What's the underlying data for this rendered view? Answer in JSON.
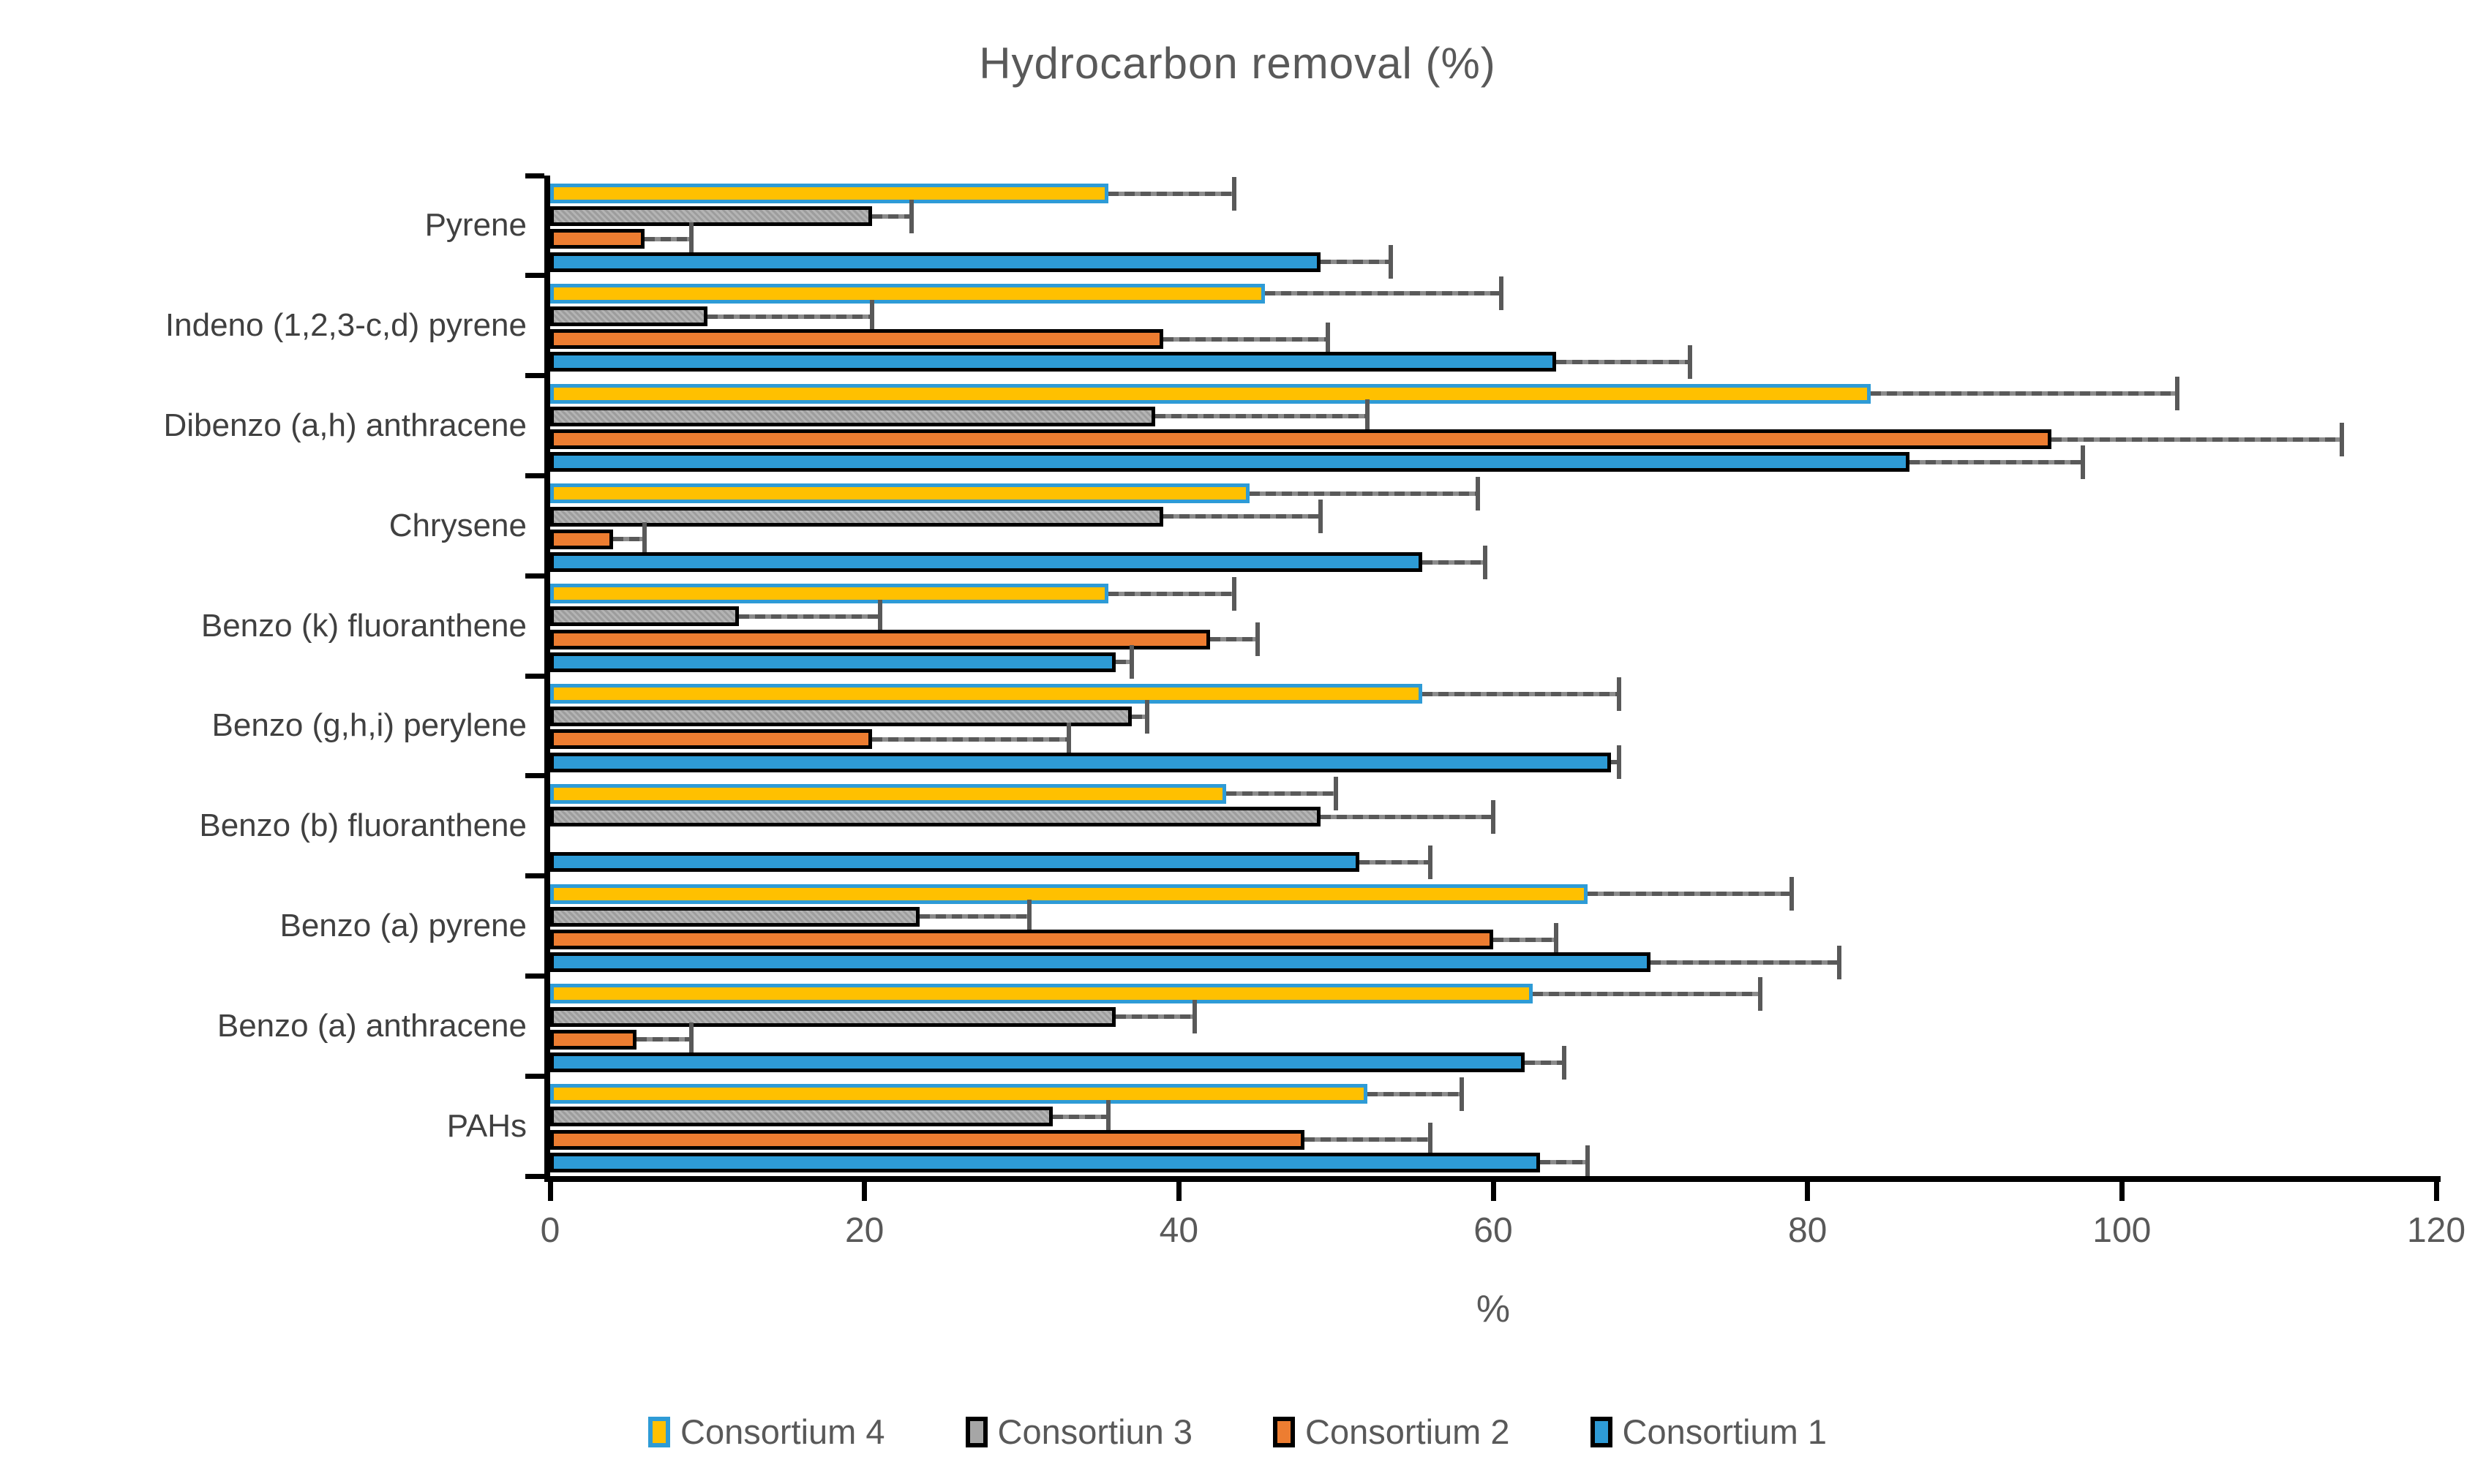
{
  "title": "Hydrocarbon removal (%)",
  "x_axis": {
    "label": "%",
    "tick_labels": [
      "0",
      "20",
      "40",
      "60",
      "80",
      "100",
      "120"
    ]
  },
  "chart_data": {
    "type": "bar",
    "orientation": "horizontal",
    "title": "Hydrocarbon removal (%)",
    "xlabel": "%",
    "xlim": [
      0,
      120
    ],
    "x_ticks": [
      0,
      20,
      40,
      60,
      80,
      100,
      120
    ],
    "grid": false,
    "legend_position": "bottom",
    "error_bars": "plus-direction",
    "categories_top_to_bottom": [
      "Pyrene",
      "Indeno (1,2,3-c,d) pyrene",
      "Dibenzo (a,h) anthracene",
      "Chrysene",
      "Benzo (k) fluoranthene",
      "Benzo (g,h,i) perylene",
      "Benzo (b) fluoranthene",
      "Benzo (a) pyrene",
      "Benzo (a) anthracene",
      "PAHs"
    ],
    "series": [
      {
        "name": "Consortium 4",
        "color": "#FFC000",
        "border_color": "#2E9BD6",
        "values": [
          35.5,
          45.5,
          84,
          44.5,
          35.5,
          55.5,
          43,
          66,
          62.5,
          52
        ],
        "errors": [
          8,
          15,
          19.5,
          14.5,
          8,
          12.5,
          7,
          13,
          14.5,
          6
        ]
      },
      {
        "name": "Consortiun 3",
        "color": "#A6A6A6",
        "border_color": "#000000",
        "values": [
          20.5,
          10,
          38.5,
          39,
          12,
          37,
          49,
          23.5,
          36,
          32
        ],
        "errors": [
          2.5,
          10.5,
          13.5,
          10,
          9,
          1,
          11,
          7,
          5,
          3.5
        ]
      },
      {
        "name": "Consortium 2",
        "color": "#ED7D31",
        "border_color": "#000000",
        "values": [
          6,
          39,
          95.5,
          4,
          42,
          20.5,
          0,
          60,
          5.5,
          48
        ],
        "errors": [
          3,
          10.5,
          18.5,
          2,
          3,
          12.5,
          0,
          4,
          3.5,
          8
        ]
      },
      {
        "name": "Consortium 1",
        "color": "#2E9BD6",
        "border_color": "#000000",
        "values": [
          49,
          64,
          86.5,
          55.5,
          36,
          67.5,
          51.5,
          70,
          62,
          63
        ],
        "errors": [
          4.5,
          8.5,
          11,
          4,
          1,
          0.5,
          4.5,
          12,
          2.5,
          3
        ]
      }
    ],
    "legend": [
      "Consortium 4",
      "Consortiun 3",
      "Consortium 2",
      "Consortium 1"
    ]
  }
}
